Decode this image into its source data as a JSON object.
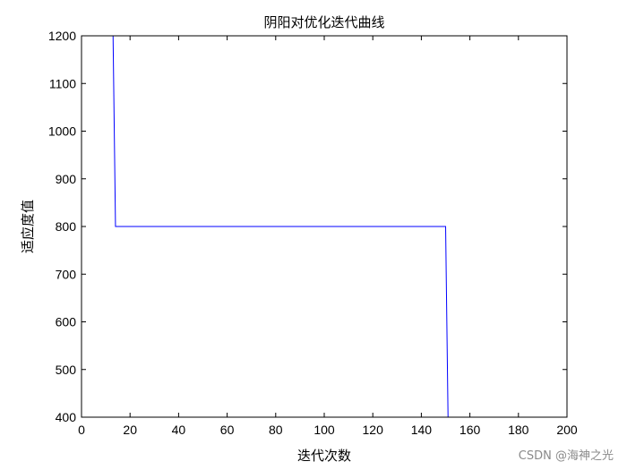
{
  "chart_data": {
    "type": "line",
    "title": "阴阳对优化迭代曲线",
    "xlabel": "迭代次数",
    "ylabel": "适应度值",
    "xlim": [
      0,
      200
    ],
    "ylim": [
      400,
      1200
    ],
    "xticks": [
      0,
      20,
      40,
      60,
      80,
      100,
      120,
      140,
      160,
      180,
      200
    ],
    "yticks": [
      400,
      500,
      600,
      700,
      800,
      900,
      1000,
      1100,
      1200
    ],
    "grid": false,
    "series": [
      {
        "color": "#0000ff",
        "x": [
          13,
          14,
          150,
          151,
          200
        ],
        "y": [
          1200,
          800,
          800,
          400,
          400
        ]
      }
    ]
  },
  "watermark": "CSDN @海神之光"
}
